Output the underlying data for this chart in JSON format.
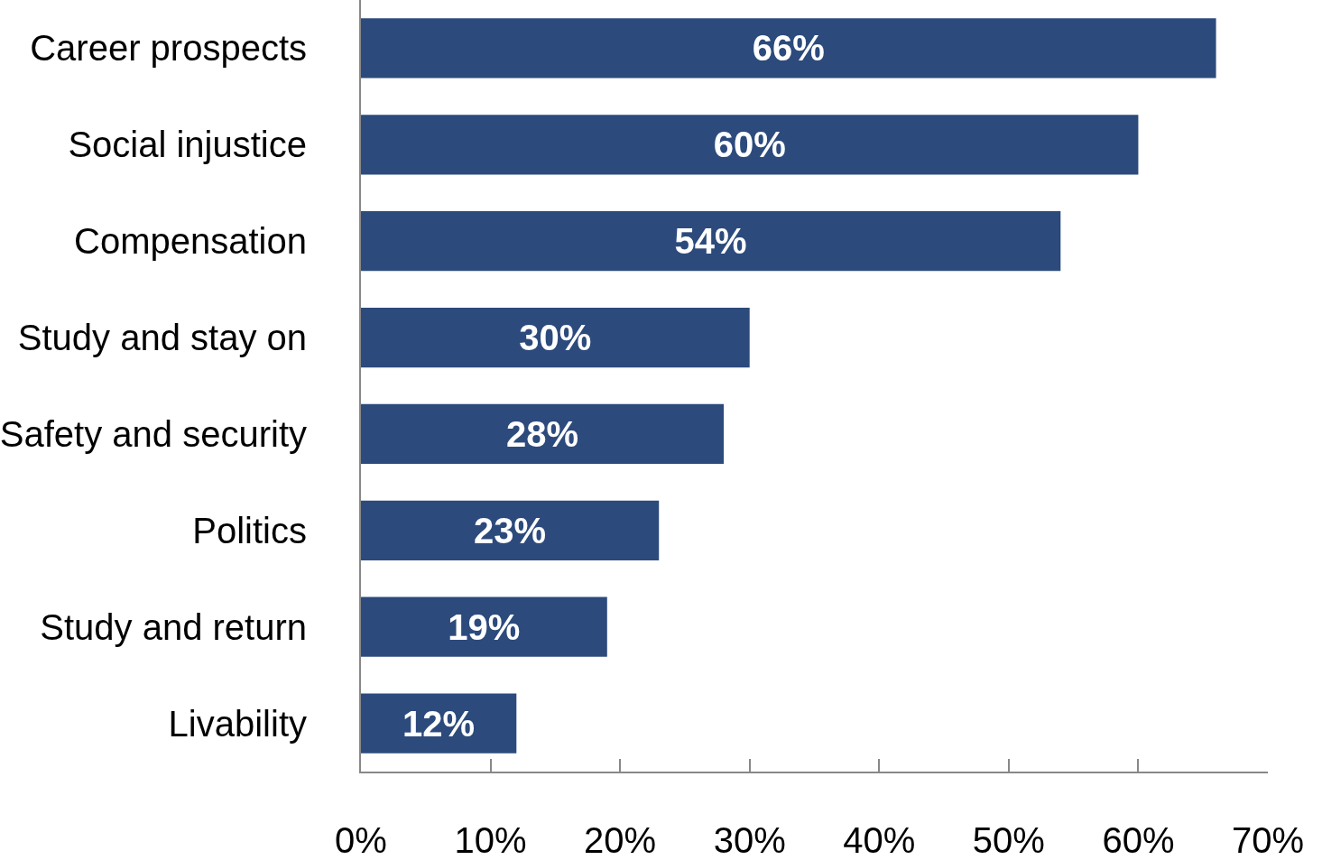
{
  "chart_data": {
    "type": "bar",
    "orientation": "horizontal",
    "categories": [
      "Career prospects",
      "Social injustice",
      "Compensation",
      "Study and stay on",
      "Safety and security",
      "Politics",
      "Study and return",
      "Livability"
    ],
    "values": [
      66,
      60,
      54,
      30,
      28,
      23,
      19,
      12
    ],
    "value_labels": [
      "66%",
      "60%",
      "54%",
      "30%",
      "28%",
      "23%",
      "19%",
      "12%"
    ],
    "color": "#2c4a7c",
    "xlim": [
      0,
      70
    ],
    "xticks": [
      {
        "value": 0,
        "label": "0%"
      },
      {
        "value": 10,
        "label": "10%"
      },
      {
        "value": 20,
        "label": "20%"
      },
      {
        "value": 30,
        "label": "30%"
      },
      {
        "value": 40,
        "label": "40%"
      },
      {
        "value": 50,
        "label": "50%"
      },
      {
        "value": 60,
        "label": "60%"
      },
      {
        "value": 70,
        "label": "70%"
      }
    ],
    "legend": false
  }
}
